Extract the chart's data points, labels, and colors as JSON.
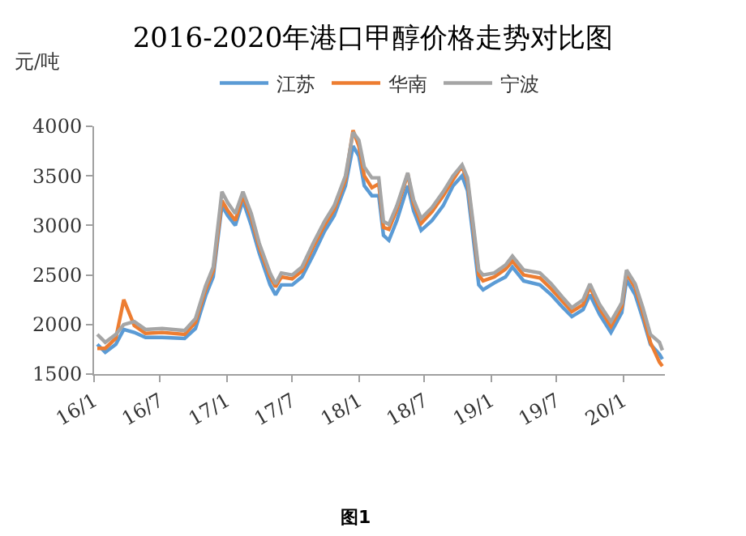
{
  "chart_data": {
    "type": "line",
    "title": "2016-2020年港口甲醇价格走势对比图",
    "ylabel": "元/吨",
    "annotations": [
      "图1"
    ],
    "x": [
      "2016-01-10",
      "2016-02-01",
      "2016-03-01",
      "2016-03-23",
      "2016-04-21",
      "2016-05-22",
      "2016-07-07",
      "2016-09-07",
      "2016-10-07",
      "2016-11-04",
      "2016-11-25",
      "2016-12-19",
      "2017-01-04",
      "2017-01-25",
      "2017-02-15",
      "2017-03-10",
      "2017-04-01",
      "2017-05-01",
      "2017-05-16",
      "2017-06-01",
      "2017-07-01",
      "2017-07-28",
      "2017-08-28",
      "2017-09-28",
      "2017-10-25",
      "2017-11-25",
      "2017-12-16",
      "2018-01-01",
      "2018-01-16",
      "2018-02-06",
      "2018-02-25",
      "2018-03-10",
      "2018-03-25",
      "2018-04-16",
      "2018-05-16",
      "2018-06-01",
      "2018-06-22",
      "2018-07-22",
      "2018-08-22",
      "2018-09-18",
      "2018-10-13",
      "2018-10-28",
      "2018-11-12",
      "2018-11-28",
      "2018-12-10",
      "2019-01-10",
      "2019-02-10",
      "2019-03-01",
      "2019-04-01",
      "2019-05-16",
      "2019-06-16",
      "2019-07-16",
      "2019-08-12",
      "2019-09-12",
      "2019-10-01",
      "2019-10-28",
      "2019-11-28",
      "2019-12-28",
      "2020-01-10",
      "2020-02-03",
      "2020-02-24",
      "2020-03-16",
      "2020-04-10",
      "2020-04-18"
    ],
    "series": [
      {
        "name": "江苏",
        "color": "#5b9bd5",
        "values": [
          1800,
          1720,
          1800,
          1950,
          1920,
          1870,
          1870,
          1860,
          1960,
          2290,
          2480,
          3200,
          3100,
          3000,
          3250,
          3000,
          2720,
          2400,
          2300,
          2400,
          2400,
          2480,
          2700,
          2940,
          3100,
          3400,
          3800,
          3700,
          3400,
          3300,
          3300,
          2900,
          2850,
          3050,
          3400,
          3150,
          2950,
          3050,
          3200,
          3400,
          3500,
          3350,
          2900,
          2400,
          2350,
          2420,
          2480,
          2580,
          2440,
          2400,
          2300,
          2180,
          2080,
          2150,
          2300,
          2100,
          1920,
          2120,
          2450,
          2300,
          2060,
          1800,
          1700,
          1650
        ]
      },
      {
        "name": "华南",
        "color": "#ed7d31",
        "values": [
          1760,
          1760,
          1860,
          2250,
          1990,
          1910,
          1920,
          1900,
          2020,
          2350,
          2540,
          3250,
          3150,
          3050,
          3300,
          3080,
          2780,
          2480,
          2380,
          2480,
          2460,
          2540,
          2780,
          3000,
          3160,
          3460,
          3960,
          3800,
          3500,
          3380,
          3420,
          2980,
          2960,
          3160,
          3520,
          3220,
          3020,
          3140,
          3300,
          3460,
          3600,
          3440,
          3000,
          2500,
          2440,
          2480,
          2560,
          2640,
          2500,
          2470,
          2360,
          2240,
          2130,
          2200,
          2380,
          2160,
          1980,
          2180,
          2520,
          2370,
          2120,
          1820,
          1620,
          1580
        ]
      },
      {
        "name": "宁波",
        "color": "#a5a5a5",
        "values": [
          1900,
          1820,
          1900,
          2000,
          2030,
          1950,
          1960,
          1940,
          2060,
          2390,
          2580,
          3340,
          3230,
          3120,
          3340,
          3120,
          2820,
          2520,
          2410,
          2520,
          2500,
          2580,
          2820,
          3040,
          3200,
          3500,
          3940,
          3860,
          3590,
          3480,
          3480,
          3040,
          3010,
          3200,
          3530,
          3260,
          3070,
          3180,
          3340,
          3500,
          3610,
          3480,
          3040,
          2550,
          2500,
          2520,
          2600,
          2690,
          2550,
          2520,
          2410,
          2280,
          2170,
          2250,
          2410,
          2200,
          2030,
          2220,
          2550,
          2410,
          2170,
          1900,
          1820,
          1740
        ]
      }
    ],
    "xlim": [
      "2016-01-01",
      "2020-04-25"
    ],
    "xticks": [
      {
        "value": "2016-01-01",
        "label": "16/1"
      },
      {
        "value": "2016-07-01",
        "label": "16/7"
      },
      {
        "value": "2017-01-01",
        "label": "17/1"
      },
      {
        "value": "2017-07-01",
        "label": "17/7"
      },
      {
        "value": "2018-01-01",
        "label": "18/1"
      },
      {
        "value": "2018-07-01",
        "label": "18/7"
      },
      {
        "value": "2019-01-01",
        "label": "19/1"
      },
      {
        "value": "2019-07-01",
        "label": "19/7"
      },
      {
        "value": "2020-01-01",
        "label": "20/1"
      }
    ],
    "ylim": [
      1500,
      4000
    ],
    "yticks": [
      1500,
      2000,
      2500,
      3000,
      3500,
      4000
    ],
    "legend": "top",
    "marker": "none",
    "line_style": "solid"
  }
}
